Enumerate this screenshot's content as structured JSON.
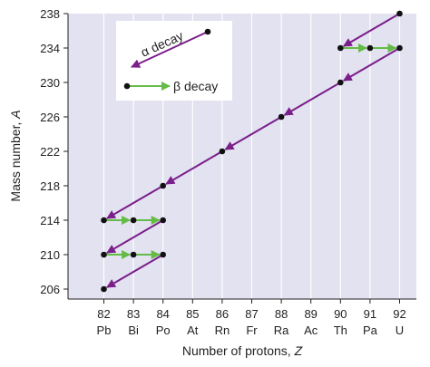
{
  "colors": {
    "plot_bg": "#e2e2f1",
    "alpha": "#7b1f8a",
    "beta": "#64bc46",
    "point": "#111111",
    "axis": "#231f20",
    "legend_bg": "#ffffff"
  },
  "chart_data": {
    "type": "scatter",
    "xlabel_prefix": "Number of protons, ",
    "xlabel_var": "Z",
    "ylabel_prefix": "Mass number, ",
    "ylabel_var": "A",
    "xlim": [
      81,
      93
    ],
    "ylim": [
      205,
      238
    ],
    "x_ticks": [
      82,
      83,
      84,
      85,
      86,
      87,
      88,
      89,
      90,
      91,
      92
    ],
    "x_tick_symbols": [
      "Pb",
      "Bi",
      "Po",
      "At",
      "Rn",
      "Fr",
      "Ra",
      "Ac",
      "Th",
      "Pa",
      "U"
    ],
    "y_ticks": [
      206,
      210,
      214,
      218,
      222,
      226,
      230,
      234,
      238
    ],
    "grid": "vertical lines at x ticks",
    "legend": {
      "position": "top-left",
      "alpha_label": "α decay",
      "beta_label": "β decay"
    },
    "nuclides": [
      {
        "Z": 92,
        "A": 238
      },
      {
        "Z": 90,
        "A": 234
      },
      {
        "Z": 91,
        "A": 234
      },
      {
        "Z": 92,
        "A": 234
      },
      {
        "Z": 90,
        "A": 230
      },
      {
        "Z": 88,
        "A": 226
      },
      {
        "Z": 86,
        "A": 222
      },
      {
        "Z": 84,
        "A": 218
      },
      {
        "Z": 82,
        "A": 214
      },
      {
        "Z": 83,
        "A": 214
      },
      {
        "Z": 84,
        "A": 214
      },
      {
        "Z": 82,
        "A": 210
      },
      {
        "Z": 83,
        "A": 210
      },
      {
        "Z": 84,
        "A": 210
      },
      {
        "Z": 82,
        "A": 206
      }
    ],
    "decays": [
      {
        "type": "alpha",
        "from": [
          92,
          238
        ],
        "to": [
          90,
          234
        ]
      },
      {
        "type": "beta",
        "from": [
          90,
          234
        ],
        "to": [
          91,
          234
        ]
      },
      {
        "type": "beta",
        "from": [
          91,
          234
        ],
        "to": [
          92,
          234
        ]
      },
      {
        "type": "alpha",
        "from": [
          92,
          234
        ],
        "to": [
          90,
          230
        ]
      },
      {
        "type": "alpha",
        "from": [
          90,
          230
        ],
        "to": [
          88,
          226
        ]
      },
      {
        "type": "alpha",
        "from": [
          88,
          226
        ],
        "to": [
          86,
          222
        ]
      },
      {
        "type": "alpha",
        "from": [
          86,
          222
        ],
        "to": [
          84,
          218
        ]
      },
      {
        "type": "alpha",
        "from": [
          84,
          218
        ],
        "to": [
          82,
          214
        ]
      },
      {
        "type": "beta",
        "from": [
          82,
          214
        ],
        "to": [
          83,
          214
        ]
      },
      {
        "type": "beta",
        "from": [
          83,
          214
        ],
        "to": [
          84,
          214
        ]
      },
      {
        "type": "alpha",
        "from": [
          84,
          214
        ],
        "to": [
          82,
          210
        ]
      },
      {
        "type": "beta",
        "from": [
          82,
          210
        ],
        "to": [
          83,
          210
        ]
      },
      {
        "type": "beta",
        "from": [
          83,
          210
        ],
        "to": [
          84,
          210
        ]
      },
      {
        "type": "alpha",
        "from": [
          84,
          210
        ],
        "to": [
          82,
          206
        ]
      }
    ]
  }
}
